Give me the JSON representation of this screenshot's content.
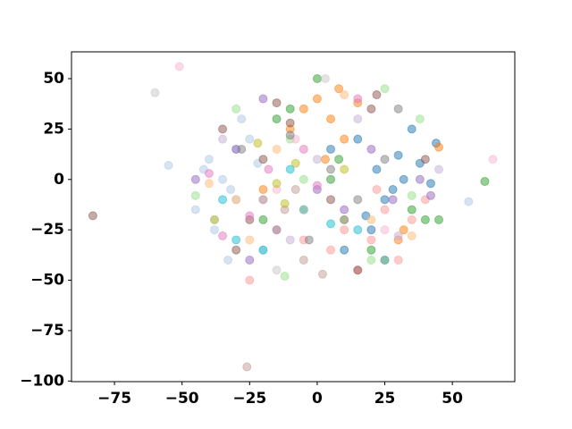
{
  "chart_data": {
    "type": "scatter",
    "xlim": [
      -90.9,
      73.1
    ],
    "ylim": [
      -100.3,
      63.3
    ],
    "xticks": [
      {
        "value": -75,
        "label": "−75"
      },
      {
        "value": -50,
        "label": "−50"
      },
      {
        "value": -25,
        "label": "−25"
      },
      0,
      25,
      50
    ],
    "yticks": [
      {
        "value": -100,
        "label": "−100"
      },
      {
        "value": -75,
        "label": "−75"
      },
      {
        "value": -50,
        "label": "−50"
      },
      {
        "value": -25,
        "label": "−25"
      },
      0,
      25,
      50
    ],
    "series": [
      {
        "color": "#1f77b4",
        "x": [
          15,
          22,
          30,
          38,
          42,
          25,
          18,
          10,
          35,
          28,
          44,
          5,
          20,
          32
        ],
        "values": [
          20,
          5,
          12,
          8,
          -2,
          -10,
          -18,
          -35,
          25,
          -5,
          18,
          15,
          -25,
          0
        ]
      },
      {
        "color": "#aec7e8",
        "x": [
          -40,
          -35,
          -30,
          -25,
          -38,
          -42,
          -28,
          -20,
          -33,
          -45,
          -30,
          -22,
          -55,
          56,
          -32
        ],
        "values": [
          10,
          0,
          -10,
          20,
          -25,
          5,
          30,
          -35,
          -40,
          -15,
          15,
          8,
          7,
          -11,
          -5
        ]
      },
      {
        "color": "#ff7f0e",
        "x": [
          0,
          5,
          10,
          -5,
          3,
          8,
          -10,
          15,
          -20,
          30,
          32,
          45,
          -38,
          25
        ],
        "values": [
          40,
          30,
          20,
          35,
          10,
          45,
          25,
          38,
          -5,
          -30,
          -25,
          16,
          -20,
          -40
        ]
      },
      {
        "color": "#ffbb78",
        "x": [
          -15,
          20,
          -25,
          35,
          10,
          -30,
          -40
        ],
        "values": [
          15,
          -20,
          -30,
          -28,
          42,
          -10,
          -2
        ]
      },
      {
        "color": "#2ca02c",
        "x": [
          0,
          -5,
          10,
          5,
          40,
          -15,
          -10,
          8,
          20,
          -20,
          35,
          62,
          45
        ],
        "values": [
          50,
          -15,
          -20,
          0,
          -20,
          30,
          35,
          10,
          -35,
          -20,
          -15,
          -1,
          -20
        ]
      },
      {
        "color": "#98df8a",
        "x": [
          -30,
          -12,
          -10,
          -38,
          -45,
          20,
          38,
          -5,
          25,
          35
        ],
        "values": [
          35,
          -48,
          20,
          -20,
          -8,
          -40,
          30,
          0,
          45,
          -8
        ]
      },
      {
        "color": "#ff9896",
        "x": [
          10,
          20,
          25,
          30,
          15,
          5,
          -5,
          40,
          35,
          22,
          -25
        ],
        "values": [
          -25,
          -30,
          -15,
          -40,
          -45,
          -35,
          -30,
          -10,
          -20,
          -5,
          -50
        ]
      },
      {
        "color": "#9467bd",
        "x": [
          -20,
          -25,
          -30,
          0,
          10,
          20,
          38,
          42,
          -45,
          -15,
          28
        ],
        "values": [
          40,
          -40,
          15,
          -5,
          -15,
          15,
          0,
          -8,
          0,
          -25,
          -10
        ]
      },
      {
        "color": "#c5b0d5",
        "x": [
          -20,
          -35,
          0,
          15,
          30,
          45,
          -10
        ],
        "values": [
          -10,
          20,
          10,
          30,
          -28,
          5,
          -30
        ]
      },
      {
        "color": "#8c564b",
        "x": [
          -30,
          -20,
          -15,
          20,
          22,
          -10,
          5,
          15,
          -83,
          40,
          -25,
          -35
        ],
        "values": [
          -35,
          10,
          38,
          35,
          42,
          28,
          -10,
          -45,
          -18,
          10,
          -20,
          25
        ]
      },
      {
        "color": "#c49c94",
        "x": [
          -26,
          -5,
          2,
          -20,
          10,
          -8,
          -15,
          -12
        ],
        "values": [
          -93,
          -40,
          -47,
          -10,
          -20,
          -5,
          -25,
          -15
        ]
      },
      {
        "color": "#e377c2",
        "x": [
          -18,
          -25,
          -5,
          15,
          0,
          -35,
          -40
        ],
        "values": [
          5,
          -18,
          15,
          40,
          -3,
          -28,
          3
        ]
      },
      {
        "color": "#f7b6d2",
        "x": [
          -51,
          -15,
          25,
          -8,
          65
        ],
        "values": [
          56,
          -5,
          -25,
          20,
          10
        ]
      },
      {
        "color": "#7f7f7f",
        "x": [
          -28,
          -10,
          15,
          30,
          -3,
          5,
          25
        ],
        "values": [
          15,
          22,
          -10,
          35,
          -30,
          5,
          10
        ]
      },
      {
        "color": "#bcbd22",
        "x": [
          -15,
          -8,
          -22,
          10,
          -12
        ],
        "values": [
          -2,
          8,
          18,
          5,
          -12
        ]
      },
      {
        "color": "#17becf",
        "x": [
          -30,
          -20,
          -5,
          5,
          15,
          -10,
          25,
          -35
        ],
        "values": [
          -30,
          -35,
          -15,
          -22,
          -25,
          5,
          -40,
          -10
        ]
      },
      {
        "color": "#c7c7c7",
        "x": [
          -5,
          -60,
          3,
          -15
        ],
        "values": [
          -15,
          43,
          50,
          -45
        ]
      }
    ]
  }
}
